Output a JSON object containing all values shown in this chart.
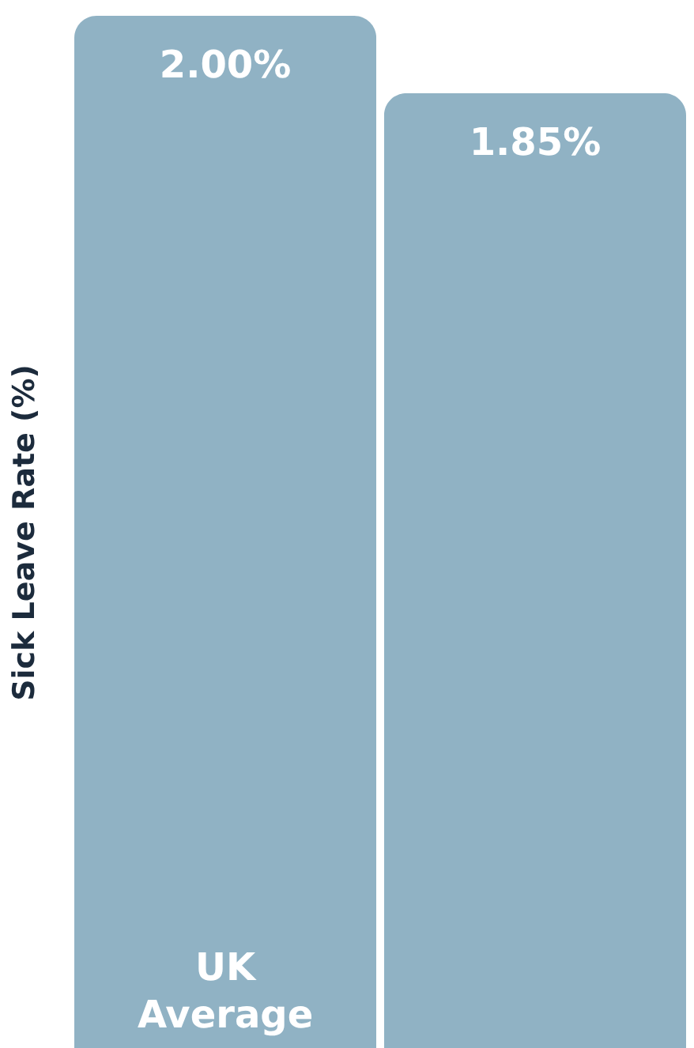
{
  "chart_data": {
    "type": "bar",
    "ylabel": "Sick Leave Rate (%)",
    "categories": [
      "UK Average",
      null
    ],
    "values": [
      2.0,
      1.85
    ],
    "value_labels": [
      "2.00%",
      "1.85%"
    ],
    "color": "#90b2c4"
  }
}
